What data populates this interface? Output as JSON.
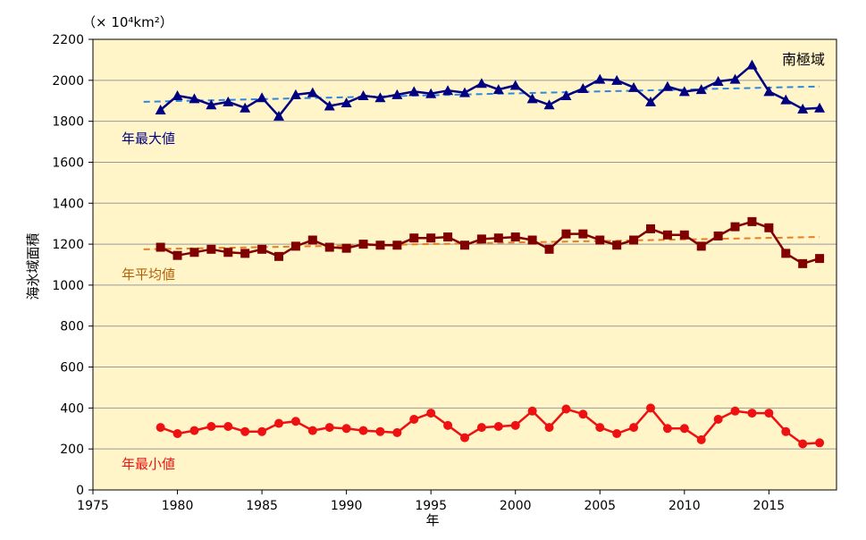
{
  "chart_data": {
    "type": "line",
    "unit_label": "（× 10⁴km²）",
    "region_label": "南極域",
    "xlabel": "年",
    "ylabel": "海氷域面積",
    "xlim": [
      1975,
      2019
    ],
    "ylim": [
      0,
      2200
    ],
    "x_ticks": [
      1975,
      1980,
      1985,
      1990,
      1995,
      2000,
      2005,
      2010,
      2015
    ],
    "y_ticks": [
      0,
      200,
      400,
      600,
      800,
      1000,
      1200,
      1400,
      1600,
      1800,
      2000,
      2200
    ],
    "grid": true,
    "x": [
      1979,
      1980,
      1981,
      1982,
      1983,
      1984,
      1985,
      1986,
      1987,
      1988,
      1989,
      1990,
      1991,
      1992,
      1993,
      1994,
      1995,
      1996,
      1997,
      1998,
      1999,
      2000,
      2001,
      2002,
      2003,
      2004,
      2005,
      2006,
      2007,
      2008,
      2009,
      2010,
      2011,
      2012,
      2013,
      2014,
      2015,
      2016,
      2017,
      2018
    ],
    "series": [
      {
        "name": "年最大値",
        "color": "#000080",
        "marker": "triangle",
        "values": [
          1855,
          1925,
          1910,
          1880,
          1895,
          1865,
          1915,
          1825,
          1930,
          1940,
          1875,
          1890,
          1925,
          1915,
          1930,
          1945,
          1935,
          1950,
          1940,
          1985,
          1955,
          1975,
          1910,
          1880,
          1925,
          1960,
          2005,
          2000,
          1965,
          1895,
          1970,
          1945,
          1955,
          1995,
          2005,
          2075,
          1945,
          1905,
          1860,
          1865
        ],
        "trend": {
          "color": "#2E86DE",
          "start": [
            1978,
            1895
          ],
          "end": [
            2018,
            1970
          ]
        }
      },
      {
        "name": "年平均値",
        "color": "#800000",
        "marker": "square",
        "values": [
          1185,
          1145,
          1160,
          1175,
          1160,
          1155,
          1175,
          1140,
          1190,
          1220,
          1185,
          1180,
          1200,
          1195,
          1195,
          1230,
          1230,
          1235,
          1195,
          1225,
          1230,
          1235,
          1220,
          1175,
          1250,
          1250,
          1220,
          1195,
          1220,
          1275,
          1245,
          1245,
          1190,
          1240,
          1285,
          1310,
          1280,
          1155,
          1105,
          1130
        ],
        "trend": {
          "color": "#E67E22",
          "start": [
            1978,
            1175
          ],
          "end": [
            2018,
            1235
          ]
        }
      },
      {
        "name": "年最小値",
        "color": "#EE1111",
        "marker": "circle",
        "values": [
          305,
          275,
          290,
          310,
          310,
          285,
          285,
          325,
          335,
          290,
          305,
          300,
          290,
          285,
          280,
          345,
          375,
          315,
          255,
          305,
          310,
          315,
          385,
          305,
          395,
          370,
          305,
          275,
          305,
          400,
          300,
          300,
          245,
          345,
          385,
          375,
          375,
          285,
          225,
          230
        ]
      }
    ]
  }
}
